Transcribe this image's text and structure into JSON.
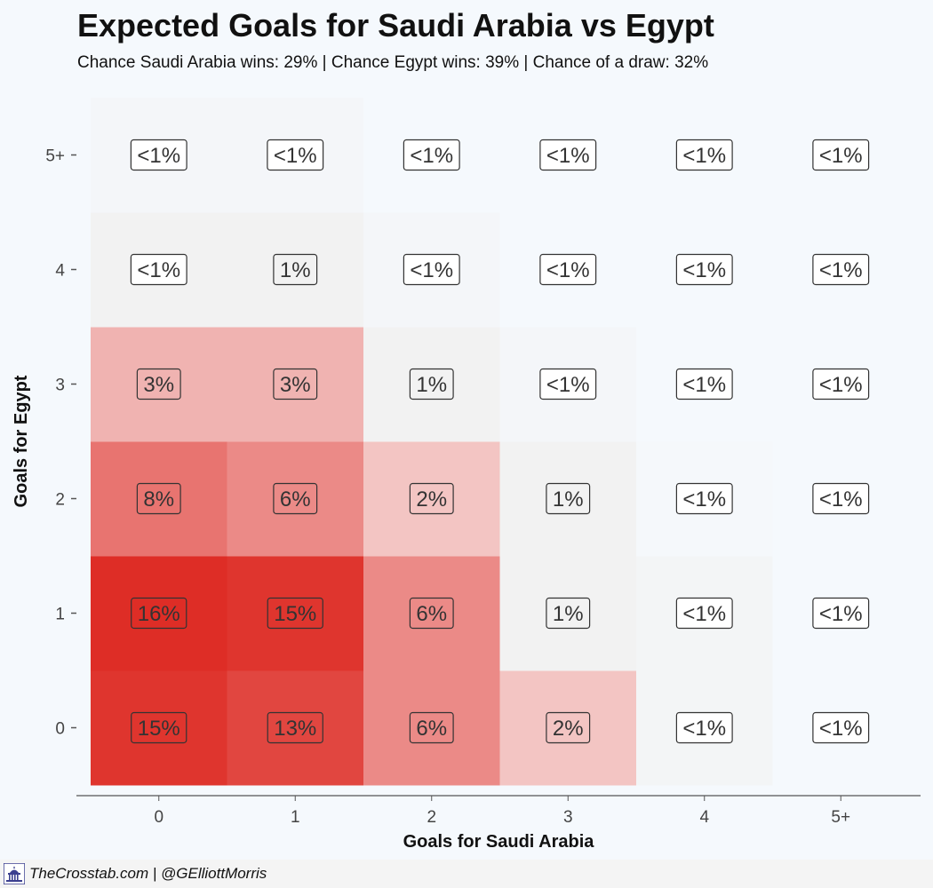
{
  "chart_data": {
    "type": "heatmap",
    "title": "Expected Goals for Saudi Arabia vs Egypt",
    "subtitle": "Chance Saudi Arabia wins: 29% | Chance Egypt wins: 39% | Chance of a draw: 32%",
    "xlabel": "Goals for Saudi Arabia",
    "ylabel": "Goals for Egypt",
    "x_categories": [
      "0",
      "1",
      "2",
      "3",
      "4",
      "5+"
    ],
    "y_categories": [
      "0",
      "1",
      "2",
      "3",
      "4",
      "5+"
    ],
    "grid": false,
    "legend": "none",
    "cells": [
      {
        "x": "0",
        "y": "0",
        "label": "15%",
        "value": 15
      },
      {
        "x": "1",
        "y": "0",
        "label": "13%",
        "value": 13
      },
      {
        "x": "2",
        "y": "0",
        "label": "6%",
        "value": 6
      },
      {
        "x": "3",
        "y": "0",
        "label": "2%",
        "value": 2
      },
      {
        "x": "4",
        "y": "0",
        "label": "<1%",
        "value": 0.4
      },
      {
        "x": "5+",
        "y": "0",
        "label": "<1%",
        "value": 0.1
      },
      {
        "x": "0",
        "y": "1",
        "label": "16%",
        "value": 16
      },
      {
        "x": "1",
        "y": "1",
        "label": "15%",
        "value": 15
      },
      {
        "x": "2",
        "y": "1",
        "label": "6%",
        "value": 6
      },
      {
        "x": "3",
        "y": "1",
        "label": "1%",
        "value": 1
      },
      {
        "x": "4",
        "y": "1",
        "label": "<1%",
        "value": 0.4
      },
      {
        "x": "5+",
        "y": "1",
        "label": "<1%",
        "value": 0.1
      },
      {
        "x": "0",
        "y": "2",
        "label": "8%",
        "value": 8
      },
      {
        "x": "1",
        "y": "2",
        "label": "6%",
        "value": 6
      },
      {
        "x": "2",
        "y": "2",
        "label": "2%",
        "value": 2
      },
      {
        "x": "3",
        "y": "2",
        "label": "1%",
        "value": 1
      },
      {
        "x": "4",
        "y": "2",
        "label": "<1%",
        "value": 0.2
      },
      {
        "x": "5+",
        "y": "2",
        "label": "<1%",
        "value": 0.1
      },
      {
        "x": "0",
        "y": "3",
        "label": "3%",
        "value": 3
      },
      {
        "x": "1",
        "y": "3",
        "label": "3%",
        "value": 3
      },
      {
        "x": "2",
        "y": "3",
        "label": "1%",
        "value": 1
      },
      {
        "x": "3",
        "y": "3",
        "label": "<1%",
        "value": 0.3
      },
      {
        "x": "4",
        "y": "3",
        "label": "<1%",
        "value": 0.1
      },
      {
        "x": "5+",
        "y": "3",
        "label": "<1%",
        "value": 0.05
      },
      {
        "x": "0",
        "y": "4",
        "label": "<1%",
        "value": 0.5
      },
      {
        "x": "1",
        "y": "4",
        "label": "1%",
        "value": 1
      },
      {
        "x": "2",
        "y": "4",
        "label": "<1%",
        "value": 0.3
      },
      {
        "x": "3",
        "y": "4",
        "label": "<1%",
        "value": 0.1
      },
      {
        "x": "4",
        "y": "4",
        "label": "<1%",
        "value": 0.05
      },
      {
        "x": "5+",
        "y": "4",
        "label": "<1%",
        "value": 0.02
      },
      {
        "x": "0",
        "y": "5+",
        "label": "<1%",
        "value": 0.3
      },
      {
        "x": "1",
        "y": "5+",
        "label": "<1%",
        "value": 0.3
      },
      {
        "x": "2",
        "y": "5+",
        "label": "<1%",
        "value": 0.1
      },
      {
        "x": "3",
        "y": "5+",
        "label": "<1%",
        "value": 0.05
      },
      {
        "x": "4",
        "y": "5+",
        "label": "<1%",
        "value": 0.02
      },
      {
        "x": "5+",
        "y": "5+",
        "label": "<1%",
        "value": 0.01
      }
    ]
  },
  "colors": {
    "background": "#f5f9fd",
    "scale_low": "#f5f9fd",
    "scale_mid": "#f2f2f2",
    "scale_high": "#de2d26",
    "label_box_fill": "#ffffff",
    "label_box_stroke": "#333333"
  },
  "footer": {
    "logo_icon": "capitol-building-icon",
    "credit": "TheCrosstab.com | @GElliottMorris"
  }
}
